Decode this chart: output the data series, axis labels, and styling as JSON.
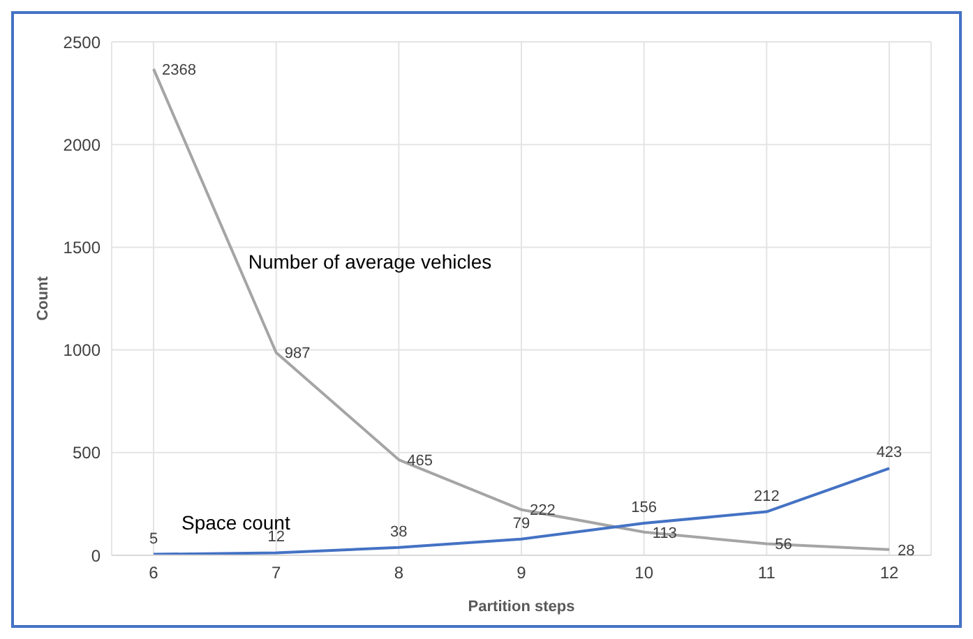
{
  "chart_data": {
    "type": "line",
    "xlabel": "Partition steps",
    "ylabel": "Count",
    "categories": [
      "6",
      "7",
      "8",
      "9",
      "10",
      "11",
      "12"
    ],
    "series": [
      {
        "name": "Number of average vehicles",
        "color": "#a5a5a5",
        "values": [
          2368,
          987,
          465,
          222,
          113,
          56,
          28
        ]
      },
      {
        "name": "Space count",
        "color": "#4472c4",
        "values": [
          5,
          12,
          38,
          79,
          156,
          212,
          423
        ]
      }
    ],
    "ylim": [
      0,
      2500
    ],
    "yticks": [
      0,
      500,
      1000,
      1500,
      2000,
      2500
    ],
    "grid": true,
    "data_labels": true,
    "marker": "none",
    "line_style": "solid"
  }
}
